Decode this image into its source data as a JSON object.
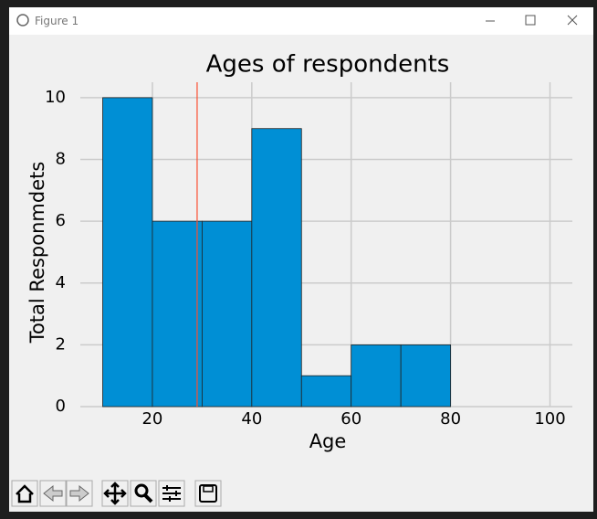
{
  "window_title": "Figure 1",
  "chart_data": {
    "type": "histogram",
    "title": "Ages of respondents",
    "xlabel": "Age",
    "ylabel": "Total Responmdets",
    "bins": [
      10,
      20,
      30,
      40,
      50,
      60,
      70,
      80
    ],
    "counts": [
      10,
      6,
      6,
      9,
      1,
      2,
      2
    ],
    "color": "#008fd5",
    "axvline": 29,
    "axvline_color": "#fc4f30",
    "xlim": [
      5.5,
      104.5
    ],
    "xticks": [
      20,
      40,
      60,
      80,
      100
    ],
    "ylim": [
      0,
      10.5
    ],
    "yticks": [
      0,
      2,
      4,
      6,
      8,
      10
    ],
    "grid": true
  }
}
